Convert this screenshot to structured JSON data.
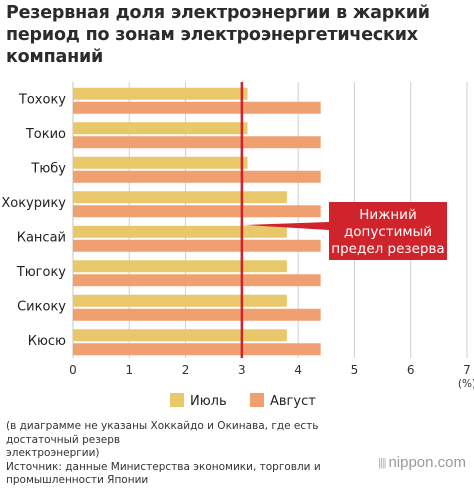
{
  "title_lines": [
    "Резервная доля электроэнергии в жаркий",
    "период по зонам электроэнергетических",
    "компаний"
  ],
  "colors": {
    "july": "#e8c86a",
    "august": "#f0a070",
    "reference_line": "#d0242c",
    "annotation_bg": "#d0242c",
    "grid": "#cfcfcf"
  },
  "chart_data": {
    "type": "bar",
    "orientation": "horizontal",
    "categories": [
      "Тохоку",
      "Токио",
      "Тюбу",
      "Хокурику",
      "Кансай",
      "Тюгоку",
      "Сикоку",
      "Кюсю"
    ],
    "series": [
      {
        "name": "Июль",
        "values": [
          3.1,
          3.1,
          3.1,
          3.8,
          3.8,
          3.8,
          3.8,
          3.8
        ]
      },
      {
        "name": "Август",
        "values": [
          4.4,
          4.4,
          4.4,
          4.4,
          4.4,
          4.4,
          4.4,
          4.4
        ]
      }
    ],
    "xlim": [
      0,
      7
    ],
    "xticks": [
      "0",
      "1",
      "2",
      "3",
      "4",
      "5",
      "6",
      "7"
    ],
    "unit_label": "(%)",
    "grid": true,
    "legend_position": "bottom",
    "reference_line": {
      "value": 3,
      "label_lines": [
        "Нижний",
        "допустимый",
        "предел резерва"
      ]
    }
  },
  "footnote_lines": [
    "(в диаграмме не указаны Хоккайдо и Окинава, где есть достаточный резерв",
    "электроэнергии)",
    "Источник: данные Министерства экономики, торговли и",
    "промышленности Японии"
  ],
  "brand": {
    "dots": "||||",
    "text": "nippon.com"
  }
}
